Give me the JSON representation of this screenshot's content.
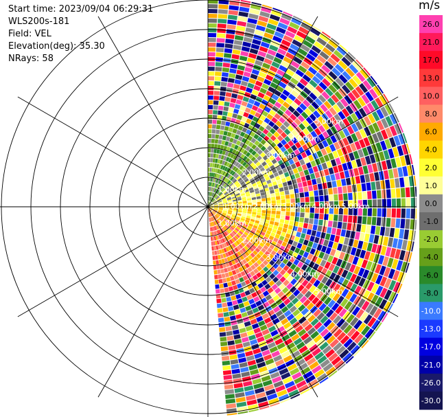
{
  "header": {
    "start_time": "Start time: 2023/09/04 06:29:31",
    "instrument": "WLS200s-181",
    "field": "Field: VEL",
    "elevation": "Elevation(deg): 35.30",
    "nrays": "NRays: 58"
  },
  "colorbar": {
    "unit": "m/s",
    "ticks": [
      "26.0",
      "21.0",
      "17.0",
      "13.0",
      "10.0",
      "8.0",
      "6.0",
      "4.0",
      "2.0",
      "1.0",
      "0.0",
      "-1.0",
      "-2.0",
      "-4.0",
      "-6.0",
      "-8.0",
      "-10.0",
      "-13.0",
      "-17.0",
      "-21.0",
      "-26.0",
      "-30.0"
    ],
    "colors": [
      "#ff40b0",
      "#ff1a5a",
      "#ff0a28",
      "#ff3a3a",
      "#ff6060",
      "#ff8a6a",
      "#ffaa00",
      "#ffd500",
      "#ffff33",
      "#ffff99",
      "#8c8c8c",
      "#6e6e6e",
      "#99cc33",
      "#66a01a",
      "#2a8a2a",
      "#2a9a6a",
      "#3a7aff",
      "#1a3aff",
      "#0000e0",
      "#0000a8",
      "#1a1a6a",
      "#141450"
    ]
  },
  "chart_data": {
    "type": "heatmap",
    "projection": "polar PPI sector",
    "title": "",
    "range_ring_labels": [
      "1.00km",
      "2.00km",
      "3.00km",
      "4.00km",
      "5.00km"
    ],
    "range_rings_km": [
      1,
      2,
      3,
      4,
      5,
      6,
      7
    ],
    "radial_spokes_deg": [
      0,
      30,
      60,
      90,
      120,
      150,
      180,
      210,
      240,
      270,
      300,
      330
    ],
    "azimuth_range_deg": [
      0,
      175
    ],
    "nrays": 58,
    "grid": true
  }
}
